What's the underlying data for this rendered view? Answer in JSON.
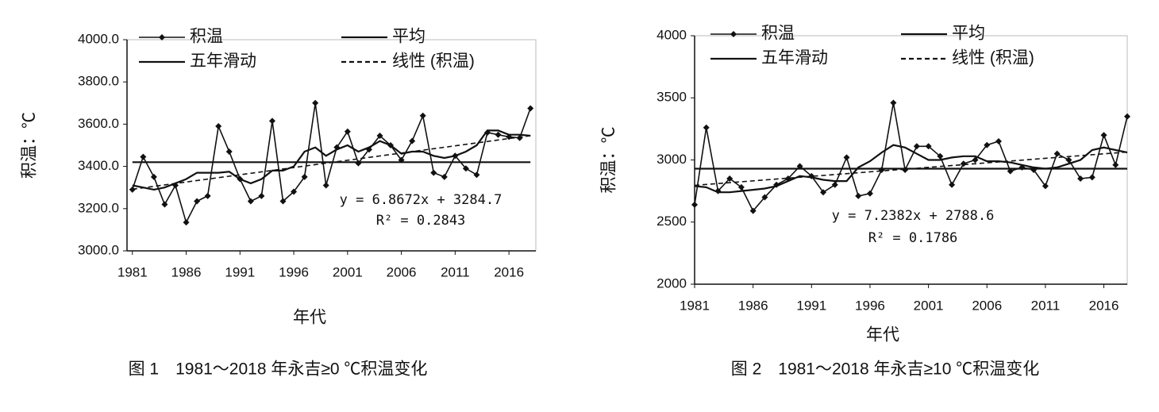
{
  "chart_data": [
    {
      "type": "line",
      "caption": "图 1　1981～2018 年永吉≥0 ℃积温变化",
      "ylabel": "积温：℃",
      "xlabel": "年代",
      "annotations": [
        "y = 6.8672x + 3284.7",
        "R² = 0.2843"
      ],
      "xlim": [
        1980.5,
        2018.5
      ],
      "xticks": [
        1981,
        1986,
        1991,
        1996,
        2001,
        2006,
        2011,
        2016
      ],
      "ylim": [
        3000,
        4000
      ],
      "yticks": [
        {
          "value": 3000,
          "label": "3000.0"
        },
        {
          "value": 3200,
          "label": "3200.0"
        },
        {
          "value": 3400,
          "label": "3400.0"
        },
        {
          "value": 3600,
          "label": "3600.0"
        },
        {
          "value": 3800,
          "label": "3800.0"
        },
        {
          "value": 4000,
          "label": "4000.0"
        }
      ],
      "x": [
        1981,
        1982,
        1983,
        1984,
        1985,
        1986,
        1987,
        1988,
        1989,
        1990,
        1991,
        1992,
        1993,
        1994,
        1995,
        1996,
        1997,
        1998,
        1999,
        2000,
        2001,
        2002,
        2003,
        2004,
        2005,
        2006,
        2007,
        2008,
        2009,
        2010,
        2011,
        2012,
        2013,
        2014,
        2015,
        2016,
        2017,
        2018
      ],
      "series": [
        {
          "name": "积温",
          "color": "#111",
          "marker": true,
          "values": [
            3290,
            3445,
            3350,
            3220,
            3310,
            3135,
            3235,
            3260,
            3590,
            3470,
            3340,
            3235,
            3260,
            3615,
            3235,
            3280,
            3350,
            3700,
            3310,
            3490,
            3565,
            3415,
            3480,
            3545,
            3500,
            3430,
            3520,
            3640,
            3370,
            3350,
            3450,
            3390,
            3360,
            3560,
            3550,
            3540,
            3535,
            3675
          ]
        },
        {
          "name": "平均",
          "color": "#111",
          "x": [
            1981,
            2018
          ],
          "values": [
            3420,
            3420
          ]
        },
        {
          "name": "五年滑动",
          "color": "#111",
          "values": [
            3310,
            3300,
            3290,
            3300,
            3320,
            3340,
            3370,
            3370,
            3370,
            3375,
            3340,
            3320,
            3340,
            3380,
            3380,
            3400,
            3470,
            3490,
            3450,
            3480,
            3500,
            3470,
            3490,
            3520,
            3500,
            3460,
            3470,
            3470,
            3450,
            3440,
            3450,
            3470,
            3500,
            3570,
            3570,
            3550,
            3550,
            3545
          ]
        },
        {
          "name": "线性 (积温)",
          "color": "#111",
          "dashed": true,
          "x": [
            1981,
            2018
          ],
          "values": [
            3291.6,
            3545.6
          ]
        }
      ]
    },
    {
      "type": "line",
      "caption": "图 2　1981～2018 年永吉≥10 ℃积温变化",
      "ylabel": "积温：℃",
      "xlabel": "年代",
      "annotations": [
        "y = 7.2382x + 2788.6",
        "R² = 0.1786"
      ],
      "xlim": [
        1981,
        2018
      ],
      "xticks": [
        1981,
        1986,
        1991,
        1996,
        2001,
        2006,
        2011,
        2016
      ],
      "ylim": [
        2000,
        4000
      ],
      "yticks": [
        2000,
        2500,
        3000,
        3500,
        4000
      ],
      "x": [
        1981,
        1982,
        1983,
        1984,
        1985,
        1986,
        1987,
        1988,
        1989,
        1990,
        1991,
        1992,
        1993,
        1994,
        1995,
        1996,
        1997,
        1998,
        1999,
        2000,
        2001,
        2002,
        2003,
        2004,
        2005,
        2006,
        2007,
        2008,
        2009,
        2010,
        2011,
        2012,
        2013,
        2014,
        2015,
        2016,
        2017,
        2018
      ],
      "series": [
        {
          "name": "积温",
          "color": "#111",
          "marker": true,
          "values": [
            2640,
            3260,
            2750,
            2850,
            2780,
            2590,
            2700,
            2800,
            2850,
            2950,
            2870,
            2740,
            2800,
            3020,
            2710,
            2730,
            2920,
            3460,
            2920,
            3110,
            3110,
            3030,
            2800,
            2970,
            3000,
            3120,
            3150,
            2910,
            2940,
            2920,
            2790,
            3050,
            3000,
            2850,
            2860,
            3200,
            2960,
            3350
          ]
        },
        {
          "name": "平均",
          "color": "#111",
          "x": [
            1981,
            2018
          ],
          "values": [
            2930,
            2930
          ]
        },
        {
          "name": "五年滑动",
          "color": "#111",
          "values": [
            2790,
            2780,
            2740,
            2740,
            2750,
            2760,
            2770,
            2790,
            2830,
            2870,
            2860,
            2840,
            2830,
            2830,
            2940,
            2990,
            3060,
            3120,
            3100,
            3050,
            3000,
            3000,
            3020,
            3030,
            3030,
            2990,
            2990,
            2980,
            2960,
            2940,
            2930,
            2940,
            2970,
            3000,
            3080,
            3100,
            3080,
            3060
          ]
        },
        {
          "name": "线性 (积温)",
          "color": "#111",
          "dashed": true,
          "x": [
            1981,
            2018
          ],
          "values": [
            2795.8,
            3063.7
          ]
        }
      ]
    }
  ]
}
